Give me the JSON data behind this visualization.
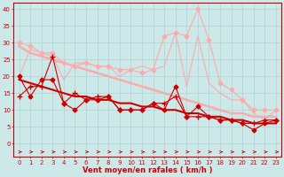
{
  "xlabel": "Vent moyen/en rafales ( km/h )",
  "bg_color": "#cce8e8",
  "grid_color": "#aacccc",
  "x": [
    0,
    1,
    2,
    3,
    4,
    5,
    6,
    7,
    8,
    9,
    10,
    11,
    12,
    13,
    14,
    15,
    16,
    17,
    18,
    19,
    20,
    21,
    22,
    23
  ],
  "series": [
    {
      "name": "moy_diamonds",
      "y": [
        20,
        14,
        19,
        19,
        12,
        10,
        13,
        13,
        14,
        10,
        10,
        10,
        12,
        10,
        17,
        8,
        11,
        8,
        7,
        7,
        6,
        4,
        6,
        7
      ],
      "color": "#cc0000",
      "marker": "D",
      "markersize": 2.5,
      "linewidth": 0.8,
      "zorder": 5,
      "linestyle": "-"
    },
    {
      "name": "moy_cross",
      "y": [
        14,
        17,
        17,
        26,
        12,
        15,
        13,
        14,
        14,
        10,
        10,
        10,
        12,
        12,
        14,
        8,
        8,
        8,
        7,
        7,
        6,
        6,
        7,
        7
      ],
      "color": "#cc0000",
      "marker": "+",
      "markersize": 4,
      "linewidth": 0.8,
      "zorder": 4,
      "linestyle": "-"
    },
    {
      "name": "moy_trend",
      "y": [
        19,
        18,
        17,
        16,
        15,
        14,
        14,
        13,
        13,
        12,
        12,
        11,
        11,
        10,
        10,
        9,
        9,
        8,
        8,
        7,
        7,
        6,
        6,
        6
      ],
      "color": "#cc0000",
      "marker": "None",
      "markersize": 0,
      "linewidth": 1.5,
      "zorder": 3,
      "linestyle": "-"
    },
    {
      "name": "raf_diamonds",
      "y": [
        30,
        29,
        27,
        27,
        24,
        23,
        24,
        23,
        23,
        22,
        22,
        21,
        22,
        32,
        33,
        32,
        40,
        31,
        18,
        16,
        13,
        10,
        10,
        10
      ],
      "color": "#ffaaaa",
      "marker": "D",
      "markersize": 2.5,
      "linewidth": 0.8,
      "zorder": 2,
      "linestyle": "-"
    },
    {
      "name": "raf_nomarker",
      "y": [
        20,
        28,
        27,
        26,
        19,
        24,
        24,
        23,
        23,
        20,
        22,
        23,
        22,
        23,
        33,
        17,
        32,
        18,
        15,
        13,
        13,
        9,
        7,
        10
      ],
      "color": "#ffaaaa",
      "marker": "None",
      "markersize": 0,
      "linewidth": 0.8,
      "zorder": 1,
      "linestyle": "-"
    },
    {
      "name": "raf_trend",
      "y": [
        29,
        27,
        26,
        25,
        24,
        23,
        22,
        21,
        20,
        19,
        18,
        17,
        16,
        15,
        14,
        13,
        12,
        11,
        10,
        9,
        9,
        8,
        8,
        8
      ],
      "color": "#ffaaaa",
      "marker": "None",
      "markersize": 0,
      "linewidth": 1.8,
      "zorder": 1,
      "linestyle": "-"
    }
  ],
  "ylim": [
    -4,
    42
  ],
  "yticks": [
    0,
    5,
    10,
    15,
    20,
    25,
    30,
    35,
    40
  ],
  "xlim": [
    -0.5,
    23.5
  ],
  "axis_fontsize": 6,
  "tick_fontsize": 5,
  "label_color": "#cc0000",
  "spine_color": "#cc0000"
}
